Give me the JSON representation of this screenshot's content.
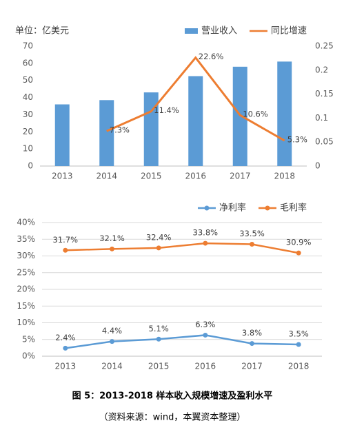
{
  "chart_data": [
    {
      "type": "bar",
      "title": "单位：亿美元",
      "categories": [
        "2013",
        "2014",
        "2015",
        "2016",
        "2017",
        "2018"
      ],
      "series": [
        {
          "name": "营业收入",
          "type": "bar",
          "color": "#5B9BD5",
          "values": [
            36,
            38.5,
            43,
            52.5,
            58,
            61
          ]
        },
        {
          "name": "同比增速",
          "type": "line",
          "axis": "y2",
          "color": "#ED7D31",
          "values": [
            null,
            0.073,
            0.114,
            0.226,
            0.106,
            0.053
          ],
          "value_labels": [
            null,
            "7.3%",
            "11.4%",
            "22.6%",
            "10.6%",
            "5.3%"
          ]
        }
      ],
      "ylim": [
        0,
        70
      ],
      "yticks": [
        0,
        10,
        20,
        30,
        40,
        50,
        60,
        70
      ],
      "y2lim": [
        0,
        0.25
      ],
      "y2ticks": [
        0,
        0.05,
        0.1,
        0.15,
        0.2,
        0.25
      ],
      "grid": false,
      "markers": false,
      "legend": "top-right"
    },
    {
      "type": "line",
      "categories": [
        "2013",
        "2014",
        "2015",
        "2016",
        "2017",
        "2018"
      ],
      "series": [
        {
          "name": "净利率",
          "color": "#5B9BD5",
          "values": [
            2.4,
            4.4,
            5.1,
            6.3,
            3.8,
            3.5
          ],
          "value_labels": [
            "2.4%",
            "4.4%",
            "5.1%",
            "6.3%",
            "3.8%",
            "3.5%"
          ]
        },
        {
          "name": "毛利率",
          "color": "#ED7D31",
          "values": [
            31.7,
            32.1,
            32.4,
            33.8,
            33.5,
            30.9
          ],
          "value_labels": [
            "31.7%",
            "32.1%",
            "32.4%",
            "33.8%",
            "33.5%",
            "30.9%"
          ]
        }
      ],
      "ylim": [
        0,
        40
      ],
      "yticks": [
        {
          "value": 0,
          "label": "0%"
        },
        {
          "value": 5,
          "label": "5%"
        },
        {
          "value": 10,
          "label": "10%"
        },
        {
          "value": 15,
          "label": "15%"
        },
        {
          "value": 20,
          "label": "20%"
        },
        {
          "value": 25,
          "label": "25%"
        },
        {
          "value": 30,
          "label": "30%"
        },
        {
          "value": 35,
          "label": "35%"
        },
        {
          "value": 40,
          "label": "40%"
        }
      ],
      "grid": true,
      "markers": true,
      "legend": "top-right"
    }
  ],
  "figure": {
    "caption": "图 5：2013-2018 样本收入规模增速及盈利水平",
    "source": "（资料来源：wind，本翼资本整理）"
  }
}
